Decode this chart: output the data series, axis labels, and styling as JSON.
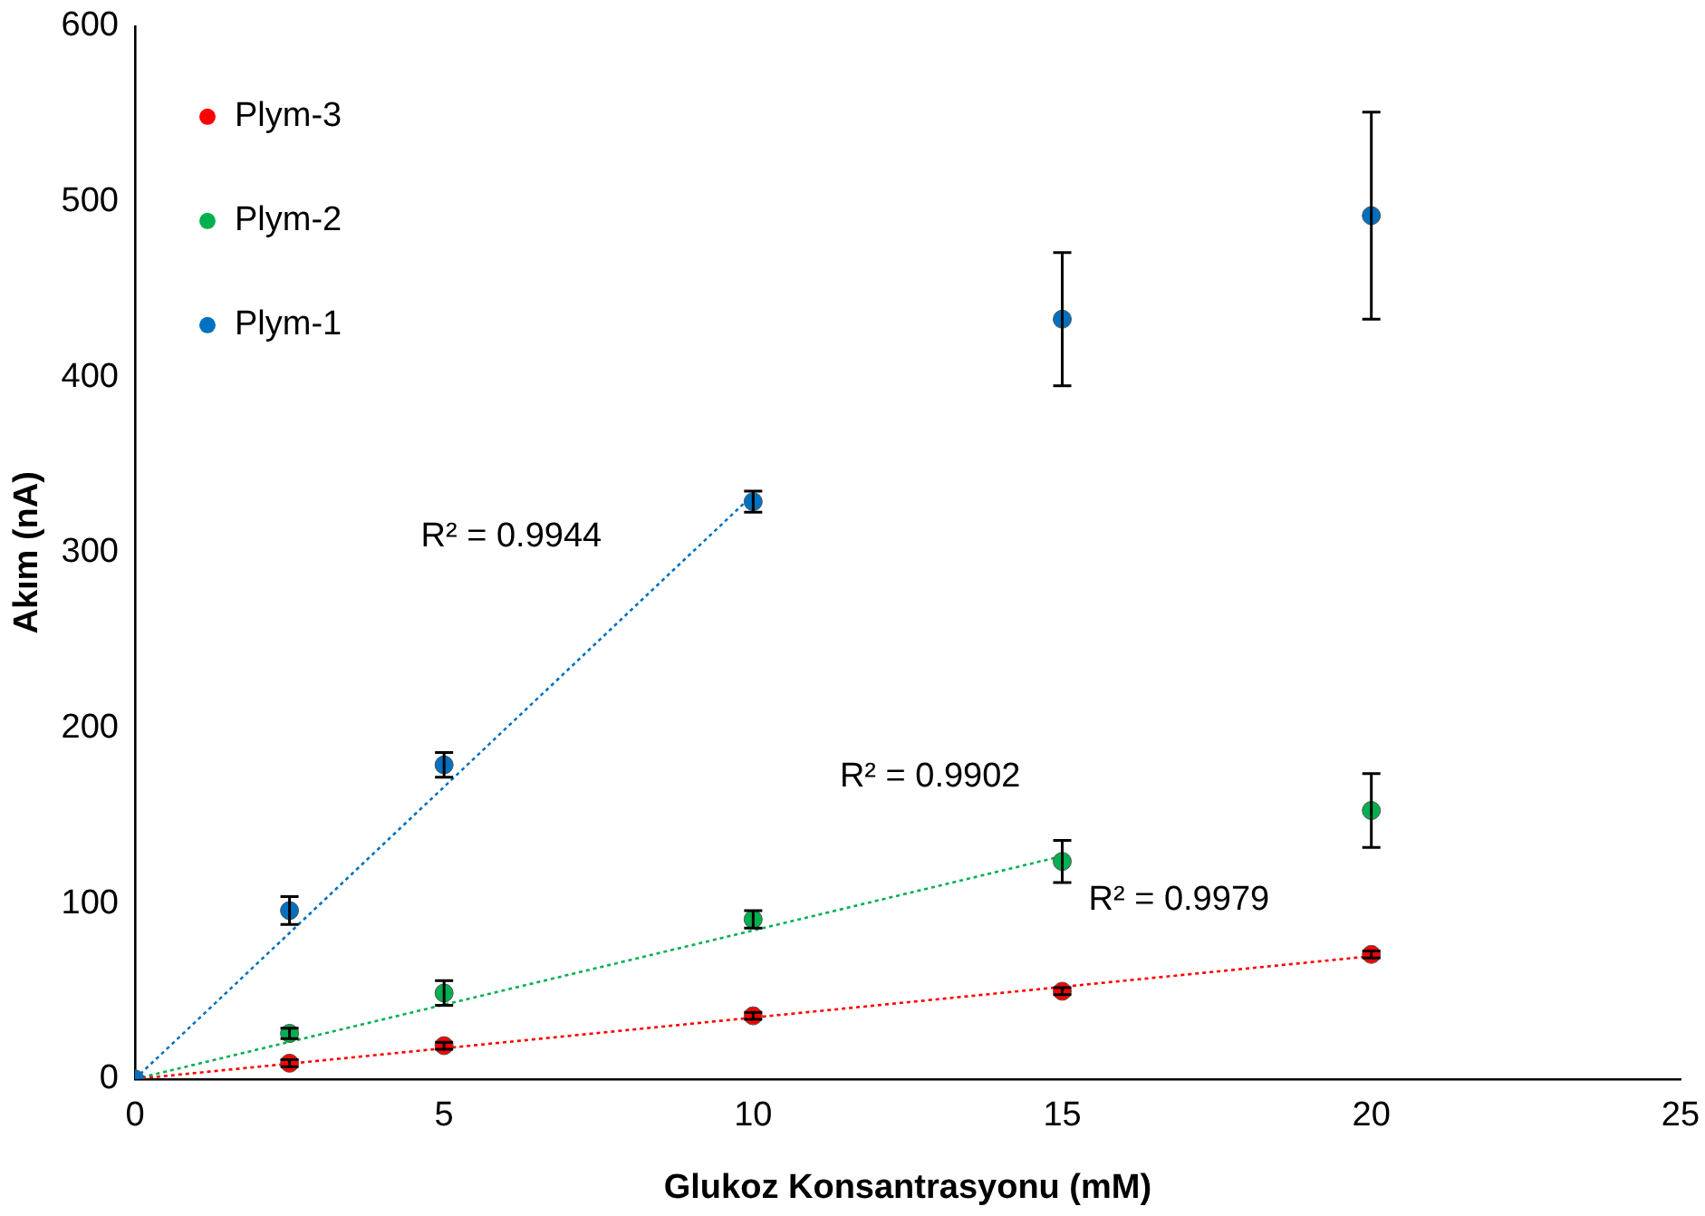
{
  "chart_data": {
    "type": "scatter",
    "xlabel": "Glukoz Konsantrasyonu (mM)",
    "ylabel": "Akım (nA)",
    "xlim": [
      0,
      25
    ],
    "xticks": [
      0,
      5,
      10,
      15,
      20,
      25
    ],
    "ylim": [
      0,
      600
    ],
    "yticks": [
      0,
      100,
      200,
      300,
      400,
      500,
      600
    ],
    "grid": false,
    "legend": "top left",
    "marker": "circle",
    "series": [
      {
        "name": "Plym-3",
        "color": "#ff0000",
        "x": [
          2.5,
          5,
          10,
          15,
          20
        ],
        "values": [
          9,
          19,
          36,
          50,
          71
        ],
        "errors": [
          2,
          2,
          2,
          2,
          2
        ]
      },
      {
        "name": "Plym-2",
        "color": "#00b050",
        "x": [
          2.5,
          5,
          10,
          15,
          20
        ],
        "values": [
          26,
          49,
          91,
          124,
          153
        ],
        "errors": [
          3,
          7,
          5,
          12,
          21
        ]
      },
      {
        "name": "Plym-1",
        "color": "#0070c0",
        "x": [
          0,
          2.5,
          5,
          10,
          15,
          20
        ],
        "values": [
          0,
          96,
          179,
          329,
          433,
          492
        ],
        "errors": [
          null,
          8,
          7,
          6,
          38,
          59
        ]
      },
      {
        "type": "line",
        "color": "#ff0000",
        "line_style": "dotted",
        "marker": "none",
        "x": [
          0,
          20
        ],
        "values": [
          0,
          70
        ]
      },
      {
        "type": "line",
        "color": "#00b050",
        "line_style": "dotted",
        "marker": "none",
        "x": [
          0,
          15
        ],
        "values": [
          0,
          127
        ]
      },
      {
        "type": "line",
        "color": "#0070c0",
        "line_style": "dotted",
        "marker": "none",
        "x": [
          0,
          10
        ],
        "values": [
          0,
          333
        ]
      }
    ],
    "annotations": [
      "R² = 0.9944",
      "R² = 0.9902",
      "R² = 0.9979"
    ]
  }
}
